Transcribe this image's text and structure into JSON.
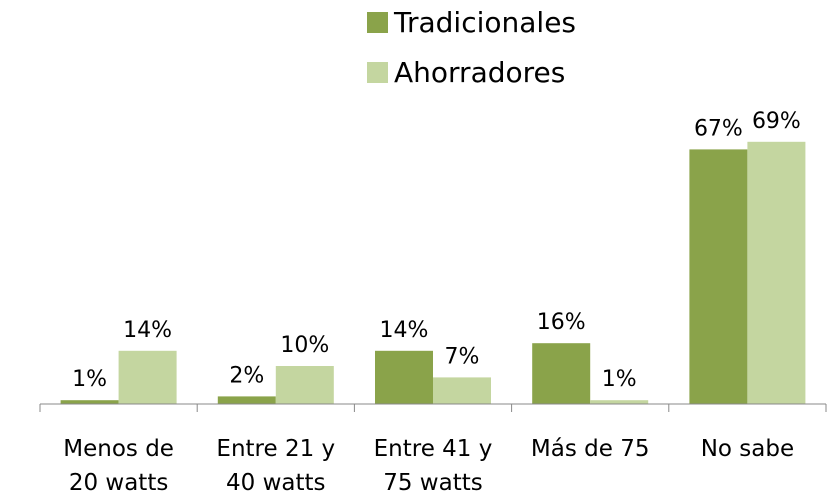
{
  "chart_data": {
    "type": "bar",
    "categories": [
      "Menos de\n20 watts",
      "Entre 21 y\n40 watts",
      "Entre 41 y\n75 watts",
      "Más de 75",
      "No sabe"
    ],
    "series": [
      {
        "name": "Tradicionales",
        "color": "#8aa34a",
        "values": [
          1,
          2,
          14,
          16,
          67
        ],
        "value_labels": [
          "1%",
          "2%",
          "14%",
          "16%",
          "67%"
        ]
      },
      {
        "name": "Ahorradores",
        "color": "#c4d6a0",
        "values": [
          14,
          10,
          7,
          1,
          69
        ],
        "value_labels": [
          "14%",
          "10%",
          "7%",
          "1%",
          "69%"
        ]
      }
    ],
    "ylim": [
      0,
      70
    ]
  }
}
